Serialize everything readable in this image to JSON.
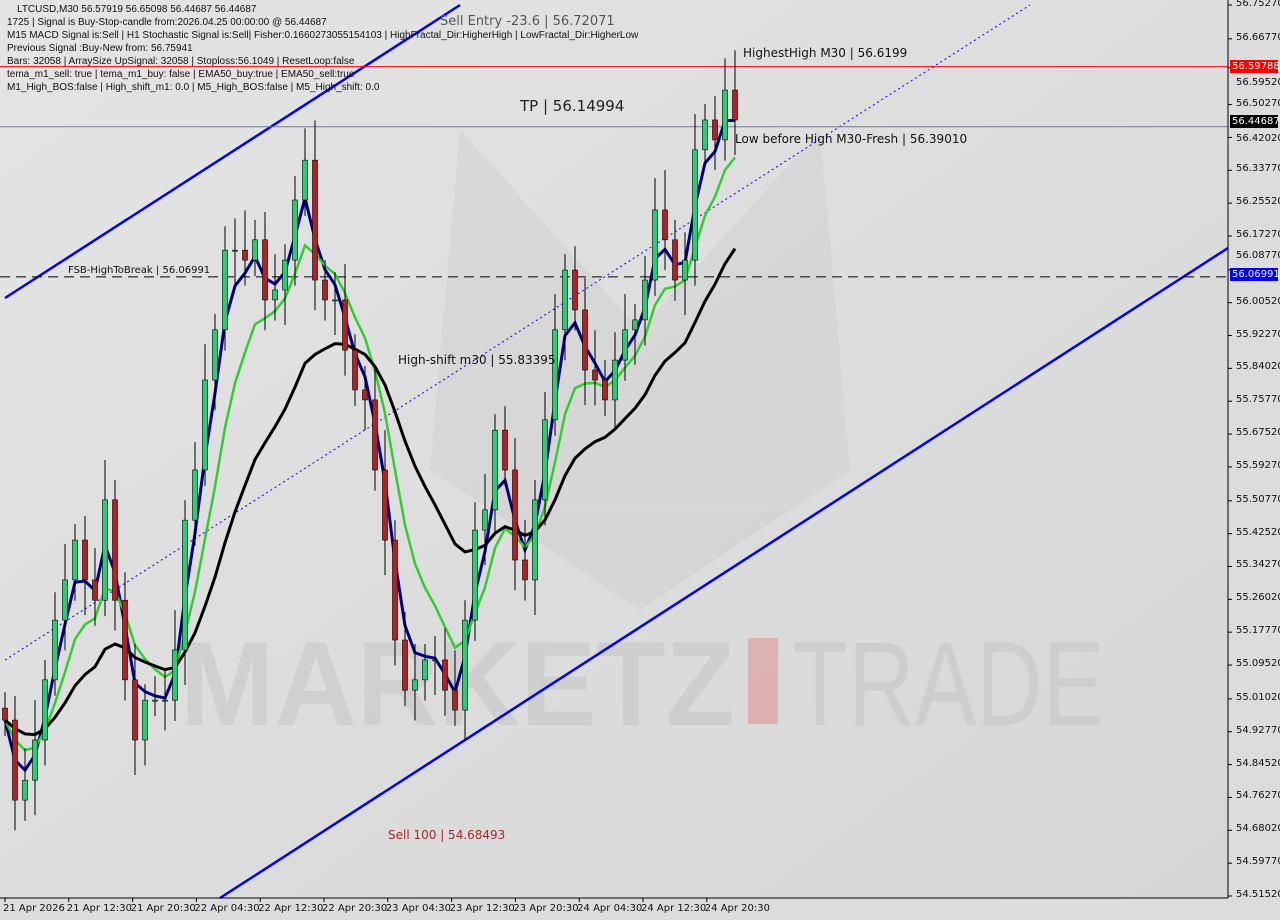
{
  "header": {
    "symbol_line": "LTCUSD,M30  56.57919 56.65098 56.44687 56.44687",
    "lines": [
      "1725 | Signal is Buy-Stop-candle from:2026.04.25 00:00:00 @ 56.44687",
      "M15 MACD Signal is:Sell | H1 Stochastic Signal is:Sell| Fisher:0.1660273055154103 | HighFractal_Dir:HigherHigh | LowFractal_Dir:HigherLow",
      "Previous Signal :Buy-New from: 56.75941",
      "Bars: 32058 | ArraySize UpSignal: 32058 | Stoploss:56.1049 | ResetLoop:false",
      "tema_m1_sell: true | tema_m1_buy: false | EMA50_buy:true | EMA50_sell:true",
      "M1_High_BOS:false | High_shift_m1: 0.0 | M5_High_BOS:false | M5_High_shift: 0.0"
    ]
  },
  "annotations": {
    "sell_entry": "Sell Entry -23.6 | 56.72071",
    "tp": "TP | 56.14994",
    "highest_high": "HighestHigh   M30 | 56.6199",
    "low_before_high": "Low before High   M30-Fresh | 56.39010",
    "fsb": "FSB-HighToBreak | 56.06991",
    "high_shift": "High-shift m30 | 55.83395",
    "sell_100": "Sell 100 | 54.68493"
  },
  "watermark": {
    "left": "MARKETZ",
    "right": "TRADE"
  },
  "chart_data": {
    "type": "candlestick",
    "title": "LTCUSD,M30",
    "ylim": [
      54.5152,
      56.7527
    ],
    "y_ticks": [
      "56.75270",
      "56.66770",
      "56.59520",
      "56.50270",
      "56.42020",
      "56.33770",
      "56.25520",
      "56.17270",
      "56.08770",
      "56.00520",
      "55.92270",
      "55.84020",
      "55.75770",
      "55.67520",
      "55.59270",
      "55.50770",
      "55.42520",
      "55.34270",
      "55.26020",
      "55.17770",
      "55.09520",
      "55.01020",
      "54.92770",
      "54.84520",
      "54.76270",
      "54.68020",
      "54.59770",
      "54.51520"
    ],
    "x_ticks": [
      "21 Apr 2026",
      "21 Apr 12:30",
      "21 Apr 20:30",
      "22 Apr 04:30",
      "22 Apr 12:30",
      "22 Apr 20:30",
      "23 Apr 04:30",
      "23 Apr 12:30",
      "23 Apr 20:30",
      "24 Apr 04:30",
      "24 Apr 12:30",
      "24 Apr 20:30"
    ],
    "close": [
      54.957,
      54.756,
      54.806,
      54.907,
      55.058,
      55.208,
      55.309,
      55.409,
      55.309,
      55.258,
      55.51,
      55.258,
      55.058,
      54.907,
      55.007,
      55.007,
      55.007,
      55.133,
      55.459,
      55.585,
      55.811,
      55.937,
      56.137,
      56.137,
      56.112,
      56.163,
      56.012,
      56.037,
      56.112,
      56.263,
      56.363,
      56.062,
      56.012,
      56.012,
      55.886,
      55.786,
      55.761,
      55.585,
      55.409,
      55.158,
      55.032,
      55.058,
      55.108,
      55.108,
      55.032,
      54.982,
      55.208,
      55.434,
      55.485,
      55.685,
      55.585,
      55.359,
      55.309,
      55.51,
      55.711,
      55.937,
      56.087,
      55.987,
      55.836,
      55.811,
      55.761,
      55.861,
      55.937,
      55.962,
      56.062,
      56.238,
      56.163,
      56.062,
      56.112,
      56.389,
      56.464,
      56.414,
      56.539,
      56.464
    ],
    "levels": {
      "bid": {
        "value": 56.59788,
        "label": "56.59788",
        "color": "#ff0000"
      },
      "last": {
        "value": 56.44687,
        "label": "56.44687",
        "color": "#000000"
      },
      "fsb": {
        "value": 56.06991,
        "label": "56.06991",
        "color": "#0000ff"
      }
    },
    "colors": {
      "bull": "#2ecc71",
      "bear": "#b22222",
      "channel": "#0000ff",
      "ema_fast": "#000080",
      "ema_mid": "#33cc33",
      "ema_slow": "#000000"
    }
  }
}
